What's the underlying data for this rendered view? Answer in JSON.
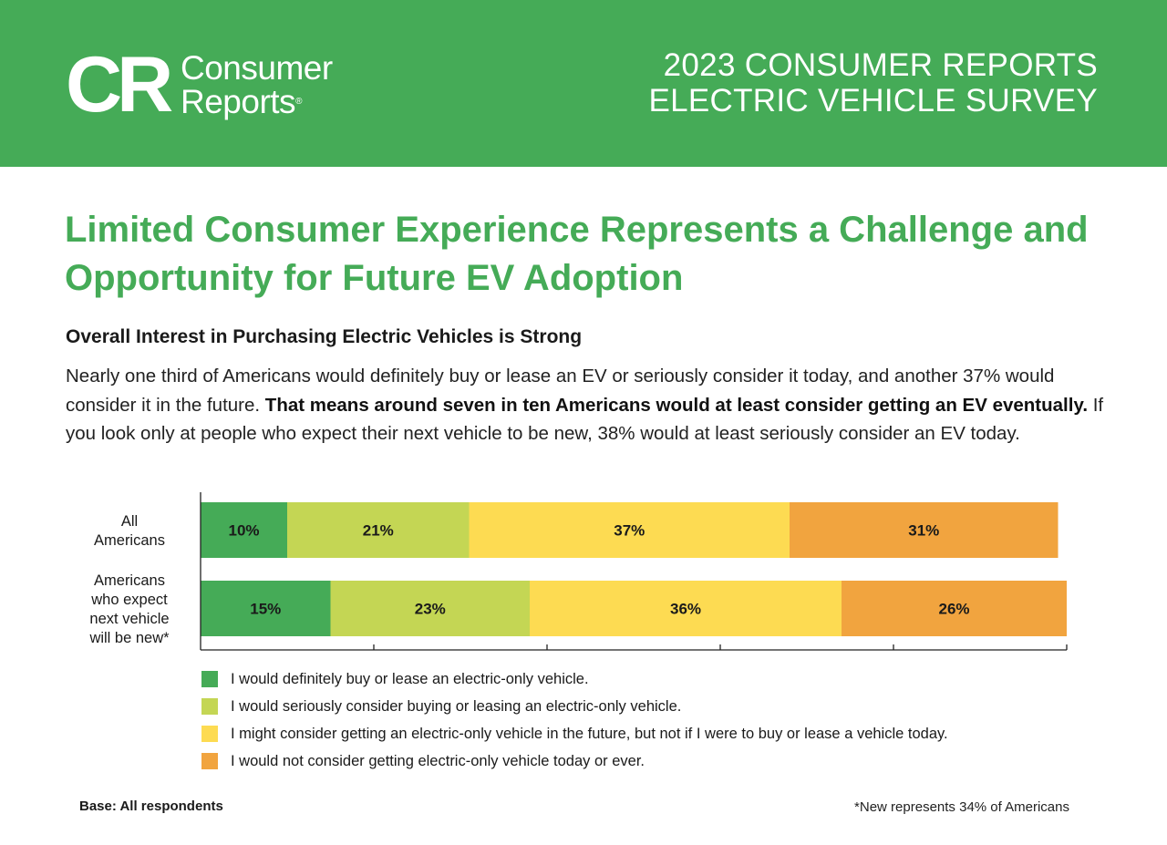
{
  "header": {
    "logo_mark": "CR",
    "logo_line1": "Consumer",
    "logo_line2": "Reports",
    "logo_registered": "®",
    "title_line1": "2023 CONSUMER REPORTS",
    "title_line2": "ELECTRIC VEHICLE SURVEY"
  },
  "headline": "Limited Consumer Experience Represents a Challenge and Opportunity for Future EV Adoption",
  "subhead": "Overall Interest in Purchasing Electric Vehicles is Strong",
  "body": {
    "part1": "Nearly one third of Americans would definitely buy or lease an EV or seriously consider it today, and another 37% would consider it in the future. ",
    "part2": "That means around seven in ten Americans would at least consider getting an EV eventually.",
    "part3": " If you look only at people who expect their next vehicle to be new, 38% would at least seriously consider an EV today."
  },
  "chart_data": {
    "type": "bar",
    "orientation": "horizontal",
    "stacked": true,
    "categories": [
      [
        "All",
        "Americans"
      ],
      [
        "Americans",
        "who expect",
        "next vehicle",
        "will be new*"
      ]
    ],
    "series": [
      {
        "name": "I would definitely buy or lease an electric-only vehicle.",
        "color": "#45ab57",
        "values": [
          10,
          15
        ]
      },
      {
        "name": "I would seriously consider buying or leasing an electric-only vehicle.",
        "color": "#c4d654",
        "values": [
          21,
          23
        ]
      },
      {
        "name": "I might consider getting an electric-only vehicle in the future, but not if I were to buy or lease a vehicle today.",
        "color": "#fddb52",
        "values": [
          37,
          36
        ]
      },
      {
        "name": "I would not consider getting electric-only vehicle today or ever.",
        "color": "#f1a43f",
        "values": [
          31,
          26
        ]
      }
    ],
    "xlim": [
      0,
      100
    ],
    "value_suffix": "%",
    "legend_position": "bottom"
  },
  "footer": {
    "base_note": "Base: All respondents",
    "new_note": "*New represents 34% of Americans"
  }
}
